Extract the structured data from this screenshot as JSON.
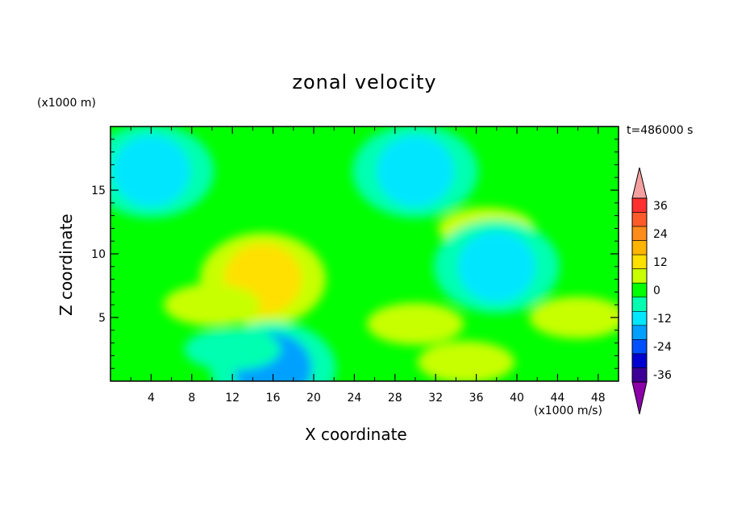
{
  "chart_data": {
    "type": "heatmap",
    "title": "zonal velocity",
    "xlabel": "X coordinate",
    "ylabel": "Z coordinate",
    "x_unit_label": "(x1000 m/s)",
    "y_unit_label": "(x1000 m)",
    "time_label": "t=486000 s",
    "xlim": [
      0,
      50
    ],
    "ylim": [
      0,
      20
    ],
    "x_ticks": [
      "4",
      "8",
      "12",
      "16",
      "20",
      "24",
      "28",
      "32",
      "36",
      "40",
      "44",
      "48"
    ],
    "y_ticks": [
      "5",
      "10",
      "15"
    ],
    "colorbar": {
      "labels": [
        "36",
        "24",
        "12",
        "0",
        "-12",
        "-24",
        "-36"
      ],
      "levels_top_to_bottom": [
        36,
        30,
        24,
        18,
        12,
        6,
        0,
        -6,
        -12,
        -18,
        -24,
        -30,
        -36
      ],
      "colors_top_to_bottom": [
        "#ff3030",
        "#ff5a2a",
        "#ff8c1a",
        "#ffb400",
        "#ffe000",
        "#c8ff00",
        "#00ff00",
        "#00ffb0",
        "#00e6ff",
        "#00a0ff",
        "#0050ff",
        "#0000d0",
        "#3c0096"
      ],
      "over_color": "#f4a0a0",
      "under_color": "#8c00a8"
    },
    "field_description": "background near 0 (green) with cyan negative bands near z=15-17 and near surface; positive yellow core around x=15, z=8 reaching ~12",
    "features": [
      {
        "x": 15,
        "z": 8,
        "value": 12
      },
      {
        "x": 10,
        "z": 6,
        "value": 6
      },
      {
        "x": 30,
        "z": 4.5,
        "value": 6
      },
      {
        "x": 35,
        "z": 1.5,
        "value": 6
      },
      {
        "x": 46,
        "z": 5,
        "value": 6
      },
      {
        "x": 37,
        "z": 12,
        "value": 6
      },
      {
        "x": 16,
        "z": 1,
        "value": -18
      },
      {
        "x": 4,
        "z": 16.5,
        "value": -12
      },
      {
        "x": 30,
        "z": 16.5,
        "value": -12
      },
      {
        "x": 38,
        "z": 9,
        "value": -12
      },
      {
        "x": 12,
        "z": 2.5,
        "value": -6
      }
    ]
  }
}
